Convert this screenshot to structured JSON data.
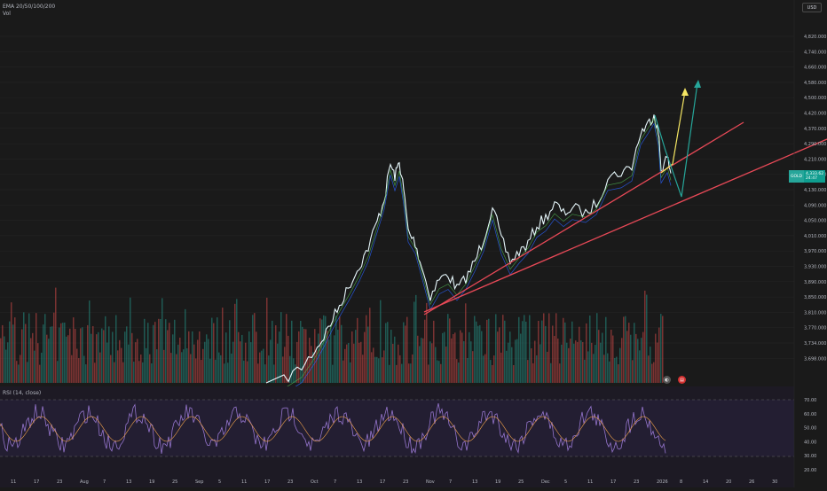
{
  "indicators": {
    "ema_label": "EMA 20/50/100/200",
    "vol_label": "Vol",
    "rsi_label": "RSI (14, close)"
  },
  "currency": "USD",
  "symbol_tag": {
    "symbol": "GOLD",
    "price": "4,333.62",
    "countdown": "24:47"
  },
  "price_axis": [
    "4,820.000",
    "4,740.000",
    "4,660.000",
    "4,580.000",
    "4,500.000",
    "4,420.000",
    "4,370.000",
    "4,290.000",
    "4,210.000",
    "4,170.000",
    "4,130.000",
    "4,090.000",
    "4,050.000",
    "4,010.000",
    "3,970.000",
    "3,930.000",
    "3,890.000",
    "3,850.000",
    "3,810.000",
    "3,770.000",
    "3,734.000",
    "3,698.000"
  ],
  "rsi_axis": [
    "70.00",
    "60.00",
    "50.00",
    "40.00",
    "30.00",
    "20.00"
  ],
  "time_axis": [
    "11",
    "17",
    "23",
    "Aug",
    "7",
    "13",
    "19",
    "25",
    "Sep",
    "5",
    "11",
    "17",
    "23",
    "Oct",
    "7",
    "13",
    "17",
    "23",
    "Nov",
    "7",
    "13",
    "19",
    "25",
    "Dec",
    "5",
    "11",
    "17",
    "23",
    "2026",
    "8",
    "14",
    "20",
    "26",
    "30"
  ],
  "colors": {
    "background": "#1a1a1a",
    "price_line": "#e6f7fb",
    "ema_green": "#4caf50",
    "ema_teal": "#26a69a",
    "ema_blue": "#2962ff",
    "trendline": "#e84957",
    "arrow_yellow": "#f5e663",
    "arrow_teal": "#26a69a",
    "vol_up": "#26a69a",
    "vol_down": "#ef5350",
    "rsi_line": "#9575cd",
    "rsi_ma": "#f0a24b"
  }
}
